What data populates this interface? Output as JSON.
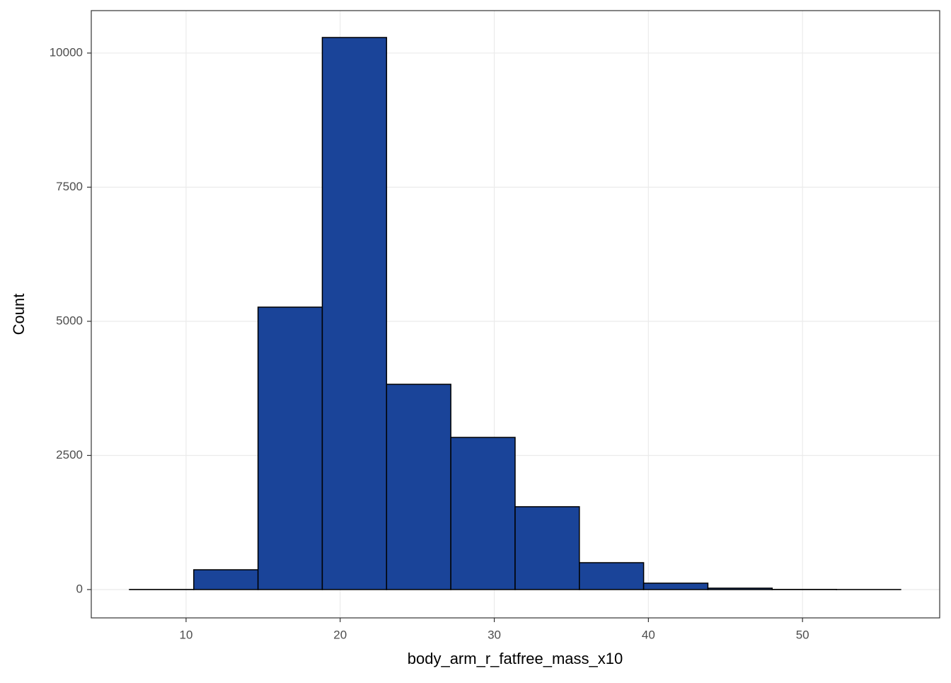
{
  "chart_data": {
    "type": "histogram",
    "xlabel": "body_arm_r_fatfree_mass_x10",
    "ylabel": "Count",
    "bins": [
      6.33,
      10.5,
      14.67,
      18.84,
      23.01,
      27.18,
      31.35,
      35.52,
      39.69,
      43.86,
      48.03,
      52.2,
      56.37
    ],
    "values": [
      2,
      369,
      5264,
      10290,
      3826,
      2836,
      1544,
      501,
      119,
      26,
      3,
      1
    ],
    "color": "#1a4499",
    "xlim": [
      3.85,
      58.9
    ],
    "xticks": [
      10,
      20,
      30,
      40,
      50
    ],
    "ylim": [
      -528,
      10791
    ],
    "yticks": [
      0,
      2500,
      5000,
      7500,
      10000
    ],
    "grid": true
  }
}
